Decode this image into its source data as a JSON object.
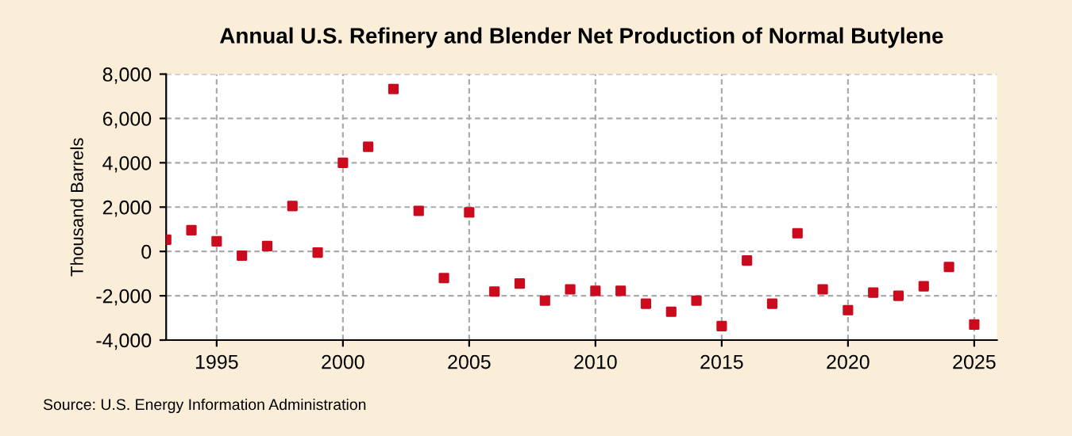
{
  "chart_data": {
    "type": "scatter",
    "title": "Annual U.S. Refinery and Blender Net Production of Normal Butylene",
    "ylabel": "Thousand Barrels",
    "x": [
      1993,
      1994,
      1995,
      1996,
      1997,
      1998,
      1999,
      2000,
      2001,
      2002,
      2003,
      2004,
      2005,
      2006,
      2007,
      2008,
      2009,
      2010,
      2011,
      2012,
      2013,
      2014,
      2015,
      2016,
      2017,
      2018,
      2019,
      2020,
      2021,
      2022,
      2023,
      2024,
      2025
    ],
    "series": [
      {
        "color": "#cc0a1e",
        "values": [
          530,
          960,
          460,
          -190,
          240,
          2050,
          -50,
          4000,
          4720,
          7330,
          1830,
          -1200,
          1760,
          -1810,
          -1450,
          -2220,
          -1710,
          -1780,
          -1780,
          -2360,
          -2720,
          -2220,
          -3370,
          -410,
          -2360,
          820,
          -1710,
          -2650,
          -1860,
          -2000,
          -1570,
          -700,
          -3300
        ]
      }
    ],
    "xlim": [
      1993,
      2025.9
    ],
    "xticks": [
      1995,
      2000,
      2005,
      2010,
      2015,
      2020,
      2025
    ],
    "ylim": [
      -4000,
      8000
    ],
    "yticks": [
      {
        "value": -4000,
        "label": "-4,000"
      },
      {
        "value": -2000,
        "label": "-2,000"
      },
      0,
      {
        "value": 2000,
        "label": "2,000"
      },
      {
        "value": 4000,
        "label": "4,000"
      },
      {
        "value": 6000,
        "label": "6,000"
      },
      {
        "value": 8000,
        "label": "8,000"
      }
    ],
    "grid": true,
    "marker": "square",
    "legend": false,
    "annotations": [
      "Source: U.S. Energy Information Administration"
    ]
  }
}
